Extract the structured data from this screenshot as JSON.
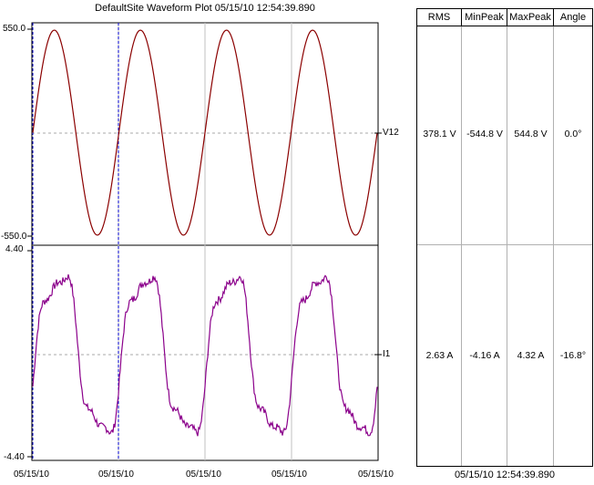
{
  "title": "DefaultSite  Waveform Plot  05/15/10  12:54:39.890",
  "chart_data": [
    {
      "type": "line",
      "channel": "V12",
      "ylim": [
        -550.0,
        550.0
      ],
      "ytick_labels": [
        "550.0",
        "-550.0"
      ],
      "series": [
        {
          "name": "V12",
          "color": "#8b0000",
          "shape": "sine",
          "amplitude": 544.8,
          "cycles": 4,
          "phase_deg": 0.0
        }
      ]
    },
    {
      "type": "line",
      "channel": "I1",
      "ylim": [
        -4.4,
        4.4
      ],
      "ytick_labels": [
        "4.40",
        "-4.40"
      ],
      "series": [
        {
          "name": "I1",
          "color": "#8b008b",
          "shape": "distorted",
          "max_peak": 4.32,
          "min_peak": -4.16,
          "cycles": 4,
          "phase_deg": -16.8
        }
      ]
    }
  ],
  "x_tick_labels": [
    "05/15/10",
    "05/15/10",
    "05/15/10",
    "05/15/10",
    "05/15/10"
  ],
  "table": {
    "headers": [
      "RMS",
      "MinPeak",
      "MaxPeak",
      "Angle"
    ],
    "rows": [
      {
        "rms": "378.1 V",
        "min": "-544.8 V",
        "max": "544.8 V",
        "angle": "0.0°"
      },
      {
        "rms": "2.63 A",
        "min": "-4.16 A",
        "max": "4.32 A",
        "angle": "-16.8°"
      }
    ]
  },
  "footer_time": "05/15/10  12:54:39.890",
  "colors": {
    "voltage": "#8b0000",
    "current": "#8b008b",
    "cursor": "#0000cc",
    "grid": "#b0b0b0"
  }
}
